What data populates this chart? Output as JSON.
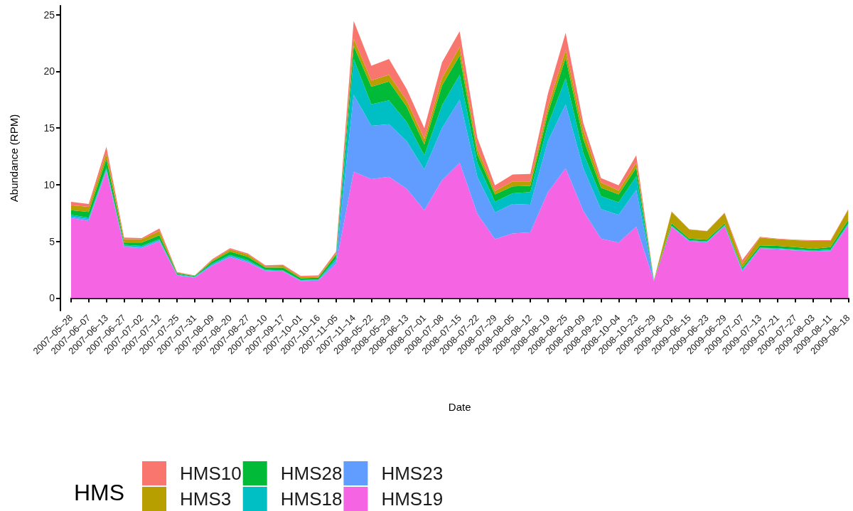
{
  "chart_data": {
    "type": "area",
    "xlabel": "Date",
    "ylabel": "Abundance (RPM)",
    "legend_title": "HMS",
    "legend": "bottom",
    "stacked": true,
    "grid": false,
    "categories": [
      "2007–05–28",
      "2007–06–07",
      "2007–06–13",
      "2007–06–27",
      "2007–07–02",
      "2007–07–12",
      "2007–07–25",
      "2007–07–31",
      "2007–08–09",
      "2007–08–20",
      "2007–08–27",
      "2007–09–10",
      "2007–09–17",
      "2007–10–01",
      "2007–10–16",
      "2007–11–05",
      "2007–11–14",
      "2008–05–22",
      "2008–05–29",
      "2008–06–13",
      "2008–07–01",
      "2008–07–08",
      "2008–07–15",
      "2008–07–22",
      "2008–07–29",
      "2008–08–05",
      "2008–08–12",
      "2008–08–19",
      "2008–08–25",
      "2008–09–09",
      "2008–09–20",
      "2008–10–04",
      "2008–10–23",
      "2009–05–29",
      "2009–06–03",
      "2009–06–15",
      "2009–06–23",
      "2009–06–29",
      "2009–07–07",
      "2009–07–13",
      "2009–07–21",
      "2009–07–27",
      "2009–08–03",
      "2009–08–11",
      "2009–08–18"
    ],
    "ylim": [
      -1.1,
      25.8
    ],
    "yticks": [
      0,
      5,
      10,
      15,
      20,
      25
    ],
    "series": [
      {
        "name": "HMS19",
        "color": "#f564e3",
        "values": [
          7.05,
          6.8,
          11.2,
          4.5,
          4.4,
          5.0,
          2.0,
          1.8,
          2.85,
          3.6,
          3.15,
          2.4,
          2.35,
          1.5,
          1.55,
          3.0,
          11.15,
          10.5,
          10.7,
          9.65,
          7.75,
          10.4,
          11.95,
          7.45,
          5.2,
          5.7,
          5.8,
          9.35,
          11.45,
          7.7,
          5.25,
          4.9,
          6.3,
          1.5,
          6.3,
          5.0,
          4.9,
          6.35,
          2.35,
          4.35,
          4.3,
          4.2,
          4.1,
          4.15,
          6.4
        ]
      },
      {
        "name": "HMS23",
        "color": "#619cff",
        "values": [
          0.15,
          0.15,
          0.15,
          0.1,
          0.1,
          0.1,
          0.05,
          0.05,
          0.1,
          0.1,
          0.1,
          0.05,
          0.05,
          0.05,
          0.05,
          0.3,
          6.8,
          4.7,
          4.65,
          4.2,
          3.6,
          4.6,
          5.55,
          3.25,
          2.35,
          2.6,
          2.45,
          4.5,
          5.65,
          3.75,
          2.6,
          2.45,
          3.25,
          0.02,
          0.05,
          0.05,
          0.05,
          0.05,
          0.1,
          0.05,
          0.05,
          0.05,
          0.05,
          0.05,
          0.1
        ]
      },
      {
        "name": "HMS18",
        "color": "#00bfc4",
        "values": [
          0.15,
          0.15,
          0.15,
          0.1,
          0.1,
          0.1,
          0.05,
          0.05,
          0.1,
          0.1,
          0.1,
          0.05,
          0.05,
          0.05,
          0.05,
          0.2,
          3.15,
          1.9,
          2.1,
          1.7,
          1.25,
          2.0,
          2.2,
          1.25,
          0.95,
          0.95,
          1.1,
          1.45,
          2.3,
          1.35,
          1.15,
          1.1,
          1.2,
          0.02,
          0.05,
          0.05,
          0.05,
          0.05,
          0.1,
          0.05,
          0.05,
          0.05,
          0.05,
          0.1,
          0.1
        ]
      },
      {
        "name": "HMS28",
        "color": "#00ba38",
        "values": [
          0.4,
          0.5,
          0.8,
          0.2,
          0.3,
          0.35,
          0.1,
          0.05,
          0.2,
          0.3,
          0.3,
          0.2,
          0.25,
          0.15,
          0.15,
          0.3,
          1.15,
          1.55,
          1.65,
          1.35,
          0.95,
          1.75,
          1.7,
          0.75,
          0.65,
          0.6,
          0.55,
          1.05,
          1.8,
          1.25,
          0.75,
          0.7,
          0.75,
          0.02,
          0.2,
          0.15,
          0.15,
          0.15,
          0.15,
          0.2,
          0.2,
          0.2,
          0.15,
          0.2,
          0.3
        ]
      },
      {
        "name": "HMS3",
        "color": "#b79f00",
        "values": [
          0.45,
          0.45,
          0.5,
          0.3,
          0.3,
          0.35,
          0.05,
          0.03,
          0.1,
          0.2,
          0.2,
          0.1,
          0.15,
          0.1,
          0.1,
          0.15,
          0.65,
          0.55,
          0.6,
          0.55,
          0.5,
          0.65,
          0.75,
          0.5,
          0.3,
          0.45,
          0.4,
          0.55,
          0.7,
          0.75,
          0.45,
          0.35,
          0.45,
          0.03,
          1.0,
          0.8,
          0.75,
          0.9,
          0.3,
          0.7,
          0.6,
          0.6,
          0.7,
          0.55,
          0.9
        ]
      },
      {
        "name": "HMS10",
        "color": "#f8766d",
        "values": [
          0.3,
          0.25,
          0.55,
          0.15,
          0.1,
          0.25,
          0.05,
          0.02,
          0.1,
          0.1,
          0.1,
          0.1,
          0.1,
          0.1,
          0.1,
          0.15,
          1.55,
          1.3,
          1.4,
          1.0,
          0.95,
          1.4,
          1.4,
          0.95,
          0.5,
          0.6,
          0.65,
          1.15,
          1.5,
          0.65,
          0.4,
          0.45,
          0.65,
          0.01,
          0.05,
          0.03,
          0.03,
          0.03,
          0.35,
          0.05,
          0.05,
          0.05,
          0.05,
          0.05,
          0.05
        ]
      }
    ]
  }
}
